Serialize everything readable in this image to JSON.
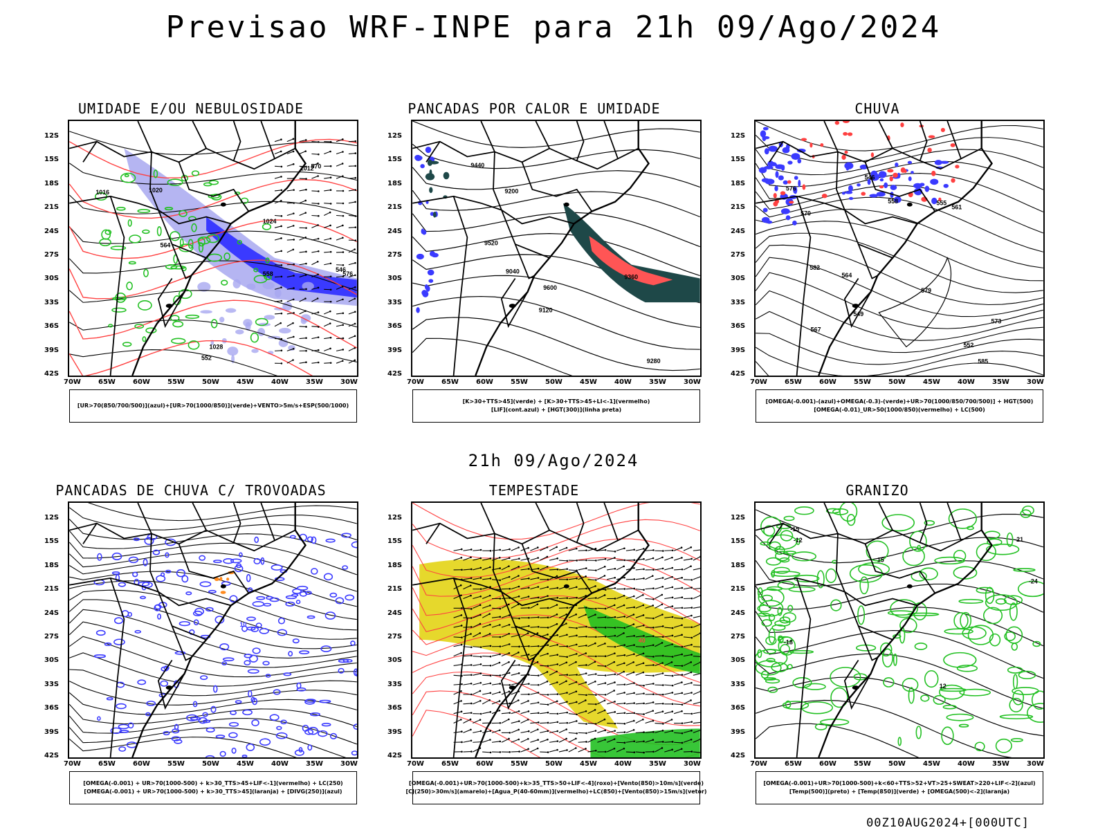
{
  "header": {
    "title": "Previsao WRF-INPE  para 21h 09/Ago/2024"
  },
  "mid_label": "21h 09/Ago/2024",
  "footer": {
    "run_stamp": "00Z10AUG2024+[000UTC]"
  },
  "axes": {
    "lat_labels": [
      "12S",
      "15S",
      "18S",
      "21S",
      "24S",
      "27S",
      "30S",
      "33S",
      "36S",
      "39S",
      "42S"
    ],
    "lon_labels": [
      "70W",
      "65W",
      "60W",
      "55W",
      "50W",
      "45W",
      "40W",
      "35W",
      "30W"
    ]
  },
  "colors": {
    "blue_fill": "#3a3aff",
    "lavender_fill": "#a8a8f0",
    "green_contour": "#22c022",
    "red_contour": "#ff4040",
    "dark_teal": "#1e4848",
    "salmon": "#ff5555",
    "yellow_fill": "#e6d82c",
    "orange": "#ff8a1e"
  },
  "panels": [
    {
      "title": "UMIDADE E/OU NEBULOSIDADE",
      "legend": [
        "[UR>70(850/700/500)](azul)+[UR>70(1000/850)](verde)+VENTO>5m/s+ESP(500/1000)"
      ],
      "contour_labels": [
        "1016",
        "1020",
        "1024",
        "1028",
        "1012",
        "552",
        "558",
        "564",
        "570",
        "576",
        "546"
      ]
    },
    {
      "title": "PANCADAS POR CALOR E UMIDADE",
      "legend": [
        "[K>30+TTS>45](verde) + [K>30+TTS>45+LI<-1](vermelho)",
        "[LIF](cont.azul) + [HGT(300)](linha preta)"
      ],
      "contour_labels": [
        "9600",
        "9520",
        "9440",
        "9360",
        "9280",
        "9200",
        "9120",
        "9040"
      ]
    },
    {
      "title": "CHUVA",
      "legend": [
        "[OMEGA(-0.001)-(azul)+OMEGA(-0.3)-(verde)+UR>70(1000/850/700/500)] + HGT(500)",
        "[OMEGA(-0.01)_UR>50(1000/850)(vermelho) + LC(500)"
      ],
      "contour_labels": [
        "585",
        "582",
        "579",
        "576",
        "573",
        "570",
        "567",
        "564",
        "561",
        "558",
        "555",
        "552",
        "549",
        "546"
      ]
    },
    {
      "title": "PANCADAS DE CHUVA C/ TROVOADAS",
      "legend": [
        "[OMEGA(-0.001) + UR>70(1000-500) + k>30_TTS>45+LIF<-1](vermelho) + LC(250)",
        "[OMEGA(-0.001) + UR>70(1000-500) + k>30_TTS>45](laranja) + [DIVG(250)](azul)"
      ],
      "contour_labels": [
        "10"
      ]
    },
    {
      "title": "TEMPESTADE",
      "legend": [
        "[OMEGA(-0.001)+UR>70(1000-500)+k>35_TTS>50+LIF<-4](roxo)+[Vento(850)>10m/s](verde)",
        "[CJ(250)>30m/s](amarelo)+[Agua_P(40-60mm)](vermelho)+LC(850)+[Vento(850)>15m/s](vetor)"
      ],
      "contour_labels": [
        "40"
      ]
    },
    {
      "title": "GRANIZO",
      "legend": [
        "[OMEGA(-0.001)+UR>70(1000-500)+k<60+TTS>52+VT>25+SWEAT>220+LIF<-2](azul)",
        "[Temp(500)](preto) + [Temp(850)](verde) + [OMEGA(500)<-2](laranja)"
      ],
      "contour_labels": [
        "-12",
        "-15",
        "-18",
        "-21",
        "-24",
        "12",
        "15"
      ]
    }
  ]
}
